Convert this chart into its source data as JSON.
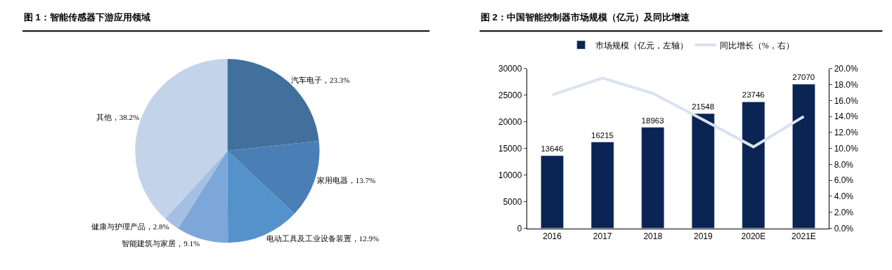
{
  "chart_data": [
    {
      "type": "pie",
      "title": "图 1：智能传感器下游应用领域",
      "categories": [
        "汽车电子",
        "家用电器",
        "电动工具及工业设备装置",
        "智能建筑与家居",
        "健康与护理产品",
        "其他"
      ],
      "values": [
        23.3,
        13.7,
        12.9,
        9.1,
        2.8,
        38.2
      ],
      "value_labels": [
        "23.3%",
        "13.7%",
        "12.9%",
        "9.1%",
        "2.8%",
        "38.2%"
      ],
      "colors": [
        "#41709c",
        "#4a7fb5",
        "#5592cb",
        "#7ca7d8",
        "#a4bfe3",
        "#c3d4ea"
      ]
    },
    {
      "type": "bar",
      "title": "图 2：中国智能控制器市场规模（亿元）及同比增速",
      "categories": [
        "2016",
        "2017",
        "2018",
        "2019",
        "2020E",
        "2021E"
      ],
      "series": [
        {
          "name": "市场规模（亿元，左轴）",
          "type": "bar",
          "color": "#0a2453",
          "values": [
            13646,
            16215,
            18963,
            21548,
            23746,
            27070
          ],
          "data_labels": true
        },
        {
          "name": "同比增长（%，右）",
          "type": "line",
          "axis": "y2",
          "color": "#dae3f0",
          "values": [
            16.7,
            18.8,
            16.9,
            13.6,
            10.2,
            14.0
          ]
        }
      ],
      "ylim": [
        0,
        30000
      ],
      "yticks": [
        0,
        5000,
        10000,
        15000,
        20000,
        25000,
        30000
      ],
      "y2lim": [
        0,
        20
      ],
      "y2ticks": [
        {
          "value": 0,
          "label": "0.0%"
        },
        {
          "value": 2,
          "label": "2.0%"
        },
        {
          "value": 4,
          "label": "4.0%"
        },
        {
          "value": 6,
          "label": "6.0%"
        },
        {
          "value": 8,
          "label": "8.0%"
        },
        {
          "value": 10,
          "label": "10.0%"
        },
        {
          "value": 12,
          "label": "12.0%"
        },
        {
          "value": 14,
          "label": "14.0%"
        },
        {
          "value": 16,
          "label": "16.0%"
        },
        {
          "value": 18,
          "label": "18.0%"
        },
        {
          "value": 20,
          "label": "20.0%"
        }
      ],
      "legend": "top"
    }
  ]
}
